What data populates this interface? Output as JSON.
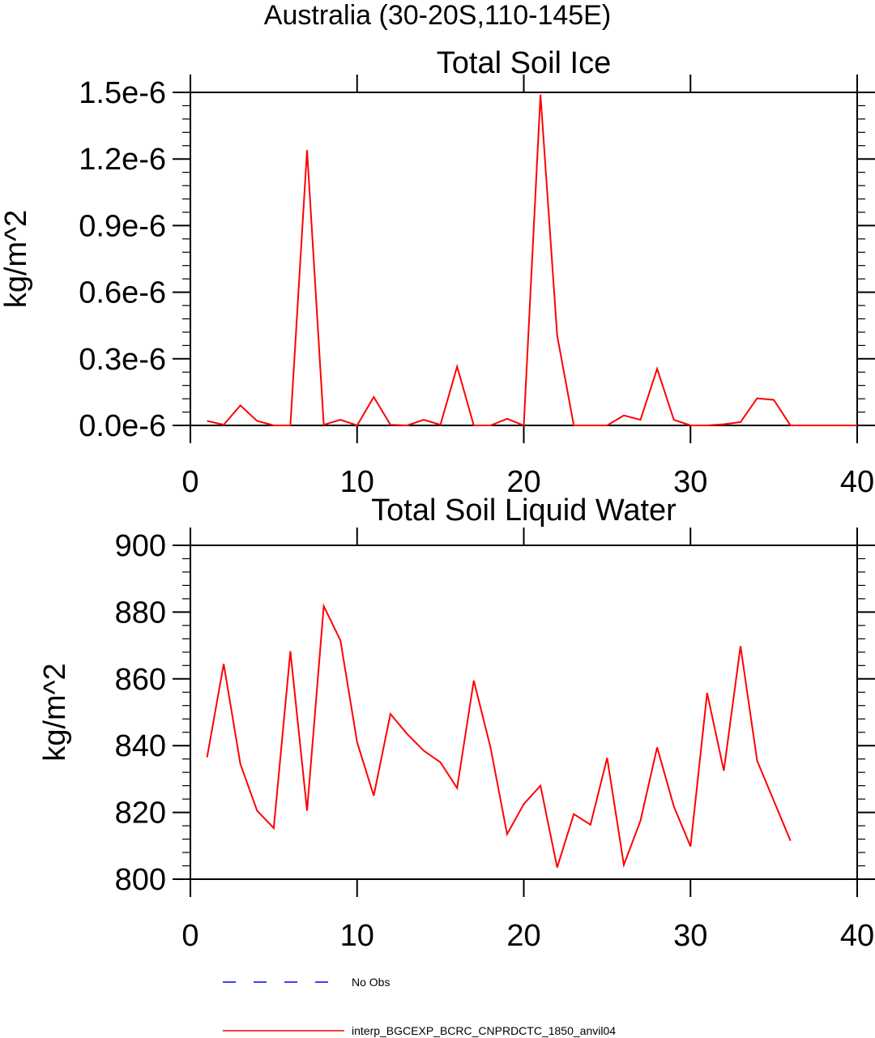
{
  "page_title": "Australia (30-20S,110-145E)",
  "legend": {
    "placement": "bottom-left",
    "entries": [
      {
        "label": "No Obs",
        "color": "#0000ff",
        "style": "dashed"
      },
      {
        "label": "interp_BGCEXP_BCRC_CNPRDCTC_1850_anvil04",
        "color": "#ff0000",
        "style": "solid"
      }
    ]
  },
  "chart_data": [
    {
      "type": "line",
      "title": "Total Soil Ice",
      "xlabel": "",
      "ylabel": "kg/m^2",
      "xlim": [
        0,
        40
      ],
      "ylim": [
        0,
        1.5e-06
      ],
      "xticks": [
        0,
        10,
        20,
        30,
        40
      ],
      "xtick_labels": [
        "0",
        "10",
        "20",
        "30",
        "40"
      ],
      "yticks": [
        0,
        3e-07,
        6e-07,
        9e-07,
        1.2e-06,
        1.5e-06
      ],
      "ytick_labels": [
        "0.0e-6",
        "0.3e-6",
        "0.6e-6",
        "0.9e-6",
        "1.2e-6",
        "1.5e-6"
      ],
      "grid": false,
      "series": [
        {
          "color": "#ff0000",
          "x": [
            1,
            2,
            3,
            4,
            5,
            6,
            7,
            8,
            9,
            10,
            11,
            12,
            13,
            14,
            15,
            16,
            17,
            18,
            19,
            20,
            21,
            22,
            23,
            24,
            25,
            26,
            27,
            28,
            29,
            30,
            31,
            32,
            33,
            34,
            35,
            36,
            37,
            38,
            39,
            40
          ],
          "y": [
            2e-08,
            3e-09,
            9e-08,
            2e-08,
            0,
            0,
            1.24e-06,
            3e-09,
            2.5e-08,
            0,
            1.28e-07,
            3e-09,
            0,
            2.5e-08,
            3e-09,
            2.65e-07,
            0,
            0,
            3e-08,
            0,
            1.49e-06,
            4.05e-07,
            0,
            0,
            0,
            4.5e-08,
            2.5e-08,
            2.55e-07,
            2.5e-08,
            0,
            0,
            5e-09,
            1.5e-08,
            1.22e-07,
            1.15e-07,
            0,
            0,
            0,
            0,
            0
          ]
        }
      ]
    },
    {
      "type": "line",
      "title": "Total Soil Liquid Water",
      "xlabel": "",
      "ylabel": "kg/m^2",
      "xlim": [
        0,
        40
      ],
      "ylim": [
        800,
        900
      ],
      "xticks": [
        0,
        10,
        20,
        30,
        40
      ],
      "xtick_labels": [
        "0",
        "10",
        "20",
        "30",
        "40"
      ],
      "yticks": [
        800,
        820,
        840,
        860,
        880,
        900
      ],
      "ytick_labels": [
        "800",
        "820",
        "840",
        "860",
        "880",
        "900"
      ],
      "grid": false,
      "series": [
        {
          "color": "#ff0000",
          "x": [
            1,
            2,
            3,
            4,
            5,
            6,
            7,
            8,
            9,
            10,
            11,
            12,
            13,
            14,
            15,
            16,
            17,
            18,
            19,
            20,
            21,
            22,
            23,
            24,
            25,
            26,
            27,
            28,
            29,
            30,
            31,
            32,
            33,
            34,
            35,
            36
          ],
          "y": [
            836.5,
            864.5,
            834.5,
            820.5,
            815.3,
            868.3,
            820.5,
            881.8,
            871.5,
            841,
            825,
            849.5,
            843.5,
            838.5,
            835,
            827.3,
            859.5,
            839.5,
            813.5,
            822.5,
            828,
            803.5,
            819.5,
            816.3,
            836.3,
            804.3,
            817.5,
            839.5,
            821.8,
            809.8,
            855.8,
            832.5,
            869.8,
            835.5,
            823.5,
            811.5
          ]
        }
      ]
    }
  ]
}
